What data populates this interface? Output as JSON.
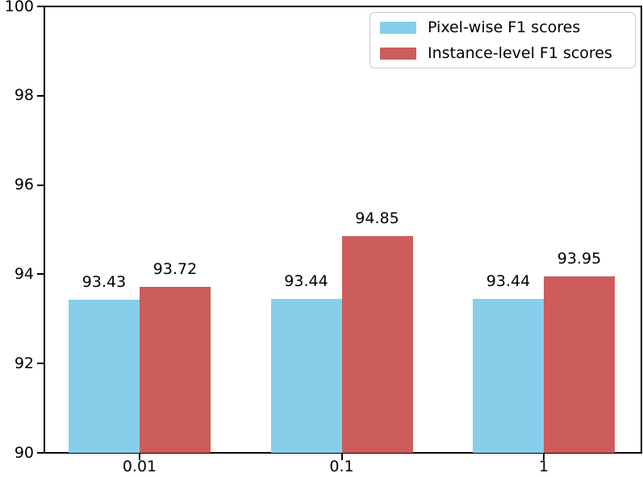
{
  "chart_data": {
    "type": "bar",
    "title": "",
    "xlabel": "",
    "ylabel": "",
    "categories": [
      "0.01",
      "0.1",
      "1"
    ],
    "series": [
      {
        "name": "Pixel-wise F1 scores",
        "color": "#87CEEB",
        "values": [
          93.43,
          93.44,
          93.44
        ],
        "value_labels": [
          "93.43",
          "93.44",
          "93.44"
        ]
      },
      {
        "name": "Instance-level F1 scores",
        "color": "#CD5C5C",
        "values": [
          93.72,
          94.85,
          93.95
        ],
        "value_labels": [
          "93.72",
          "94.85",
          "93.95"
        ]
      }
    ],
    "ylim": [
      90,
      100
    ],
    "yticks": [
      90,
      92,
      94,
      96,
      98,
      100
    ],
    "grid": false,
    "legend": {
      "position": "upper right",
      "entries": [
        "Pixel-wise F1 scores",
        "Instance-level F1 scores"
      ]
    },
    "axis_color": "#000000",
    "text_color": "#000000",
    "background_color": "#ffffff",
    "legend_border_color": "#cccccc"
  }
}
